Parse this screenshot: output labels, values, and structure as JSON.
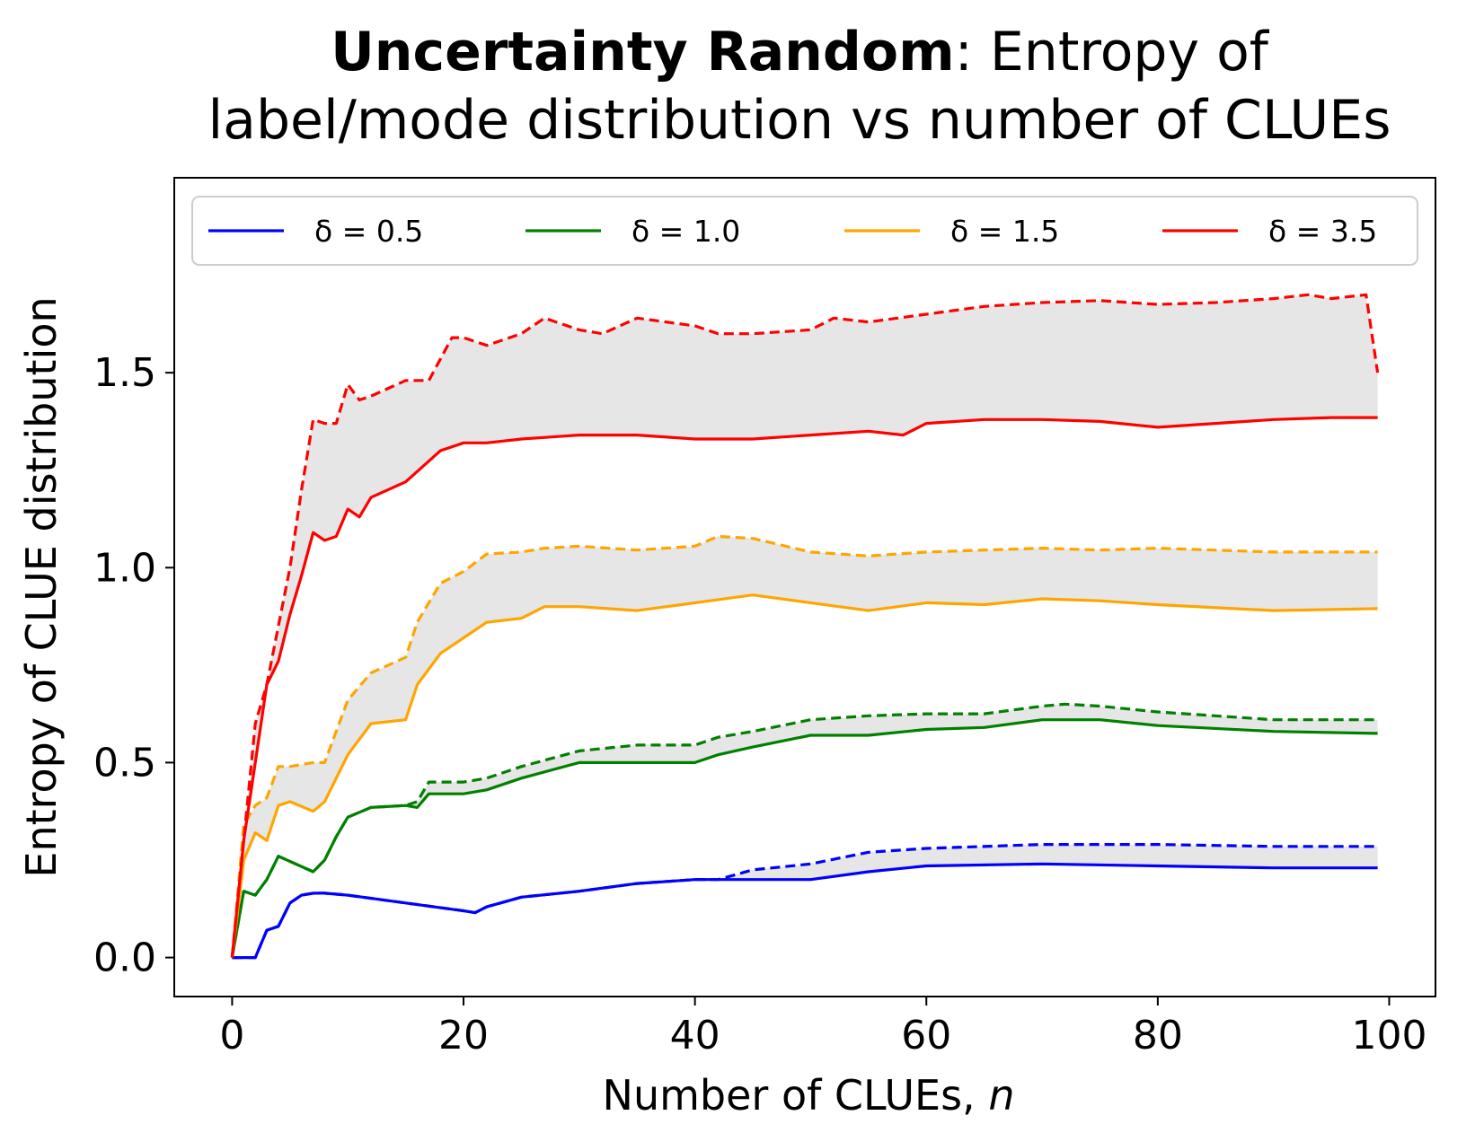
{
  "chart_data": {
    "type": "line",
    "title": {
      "bold": "Uncertainty Random",
      "rest_line1": ": Entropy of",
      "line2": "label/mode distribution vs number of CLUEs"
    },
    "xlabel": "Number of CLUEs,",
    "xlabel_var": "n",
    "ylabel": "Entropy of CLUE distribution",
    "xlim": [
      -5,
      104
    ],
    "ylim": [
      -0.1,
      2.0
    ],
    "xticks": [
      0,
      20,
      40,
      60,
      80,
      100
    ],
    "xtick_labels": [
      "0",
      "20",
      "40",
      "60",
      "80",
      "100"
    ],
    "yticks": [
      0.0,
      0.5,
      1.0,
      1.5
    ],
    "ytick_labels": [
      "0.0",
      "0.5",
      "1.0",
      "1.5"
    ],
    "grid": false,
    "legend_position": "top, single row",
    "band_color": "#e6e6e6",
    "series": [
      {
        "name": "δ = 0.5",
        "color": "#0000ff",
        "solid": [
          [
            0,
            0
          ],
          [
            1,
            0
          ],
          [
            2,
            0
          ],
          [
            3,
            0.07
          ],
          [
            4,
            0.08
          ],
          [
            5,
            0.14
          ],
          [
            6,
            0.16
          ],
          [
            7,
            0.165
          ],
          [
            8,
            0.165
          ],
          [
            10,
            0.16
          ],
          [
            15,
            0.14
          ],
          [
            20,
            0.12
          ],
          [
            21,
            0.115
          ],
          [
            22,
            0.13
          ],
          [
            25,
            0.155
          ],
          [
            30,
            0.17
          ],
          [
            35,
            0.19
          ],
          [
            40,
            0.2
          ],
          [
            45,
            0.2
          ],
          [
            50,
            0.2
          ],
          [
            55,
            0.22
          ],
          [
            60,
            0.235
          ],
          [
            70,
            0.24
          ],
          [
            80,
            0.235
          ],
          [
            90,
            0.23
          ],
          [
            99,
            0.23
          ]
        ],
        "dashed": [
          [
            0,
            0
          ],
          [
            1,
            0
          ],
          [
            2,
            0
          ],
          [
            3,
            0.07
          ],
          [
            4,
            0.08
          ],
          [
            5,
            0.14
          ],
          [
            6,
            0.16
          ],
          [
            7,
            0.165
          ],
          [
            8,
            0.165
          ],
          [
            10,
            0.16
          ],
          [
            15,
            0.14
          ],
          [
            20,
            0.12
          ],
          [
            21,
            0.115
          ],
          [
            22,
            0.13
          ],
          [
            25,
            0.155
          ],
          [
            30,
            0.17
          ],
          [
            35,
            0.19
          ],
          [
            40,
            0.2
          ],
          [
            42,
            0.2
          ],
          [
            45,
            0.225
          ],
          [
            50,
            0.24
          ],
          [
            55,
            0.27
          ],
          [
            60,
            0.28
          ],
          [
            70,
            0.29
          ],
          [
            80,
            0.29
          ],
          [
            90,
            0.285
          ],
          [
            99,
            0.285
          ]
        ]
      },
      {
        "name": "δ = 1.0",
        "color": "#008000",
        "solid": [
          [
            0,
            0
          ],
          [
            1,
            0.17
          ],
          [
            2,
            0.16
          ],
          [
            3,
            0.2
          ],
          [
            4,
            0.26
          ],
          [
            7,
            0.22
          ],
          [
            8,
            0.25
          ],
          [
            9,
            0.31
          ],
          [
            10,
            0.36
          ],
          [
            12,
            0.385
          ],
          [
            15,
            0.39
          ],
          [
            16,
            0.385
          ],
          [
            17,
            0.42
          ],
          [
            20,
            0.42
          ],
          [
            22,
            0.43
          ],
          [
            25,
            0.46
          ],
          [
            30,
            0.5
          ],
          [
            35,
            0.5
          ],
          [
            40,
            0.5
          ],
          [
            42,
            0.52
          ],
          [
            45,
            0.54
          ],
          [
            50,
            0.57
          ],
          [
            55,
            0.57
          ],
          [
            60,
            0.585
          ],
          [
            65,
            0.59
          ],
          [
            70,
            0.61
          ],
          [
            75,
            0.61
          ],
          [
            80,
            0.595
          ],
          [
            90,
            0.58
          ],
          [
            99,
            0.575
          ]
        ],
        "dashed": [
          [
            0,
            0
          ],
          [
            1,
            0.17
          ],
          [
            2,
            0.16
          ],
          [
            3,
            0.2
          ],
          [
            4,
            0.26
          ],
          [
            7,
            0.22
          ],
          [
            8,
            0.25
          ],
          [
            9,
            0.31
          ],
          [
            10,
            0.36
          ],
          [
            12,
            0.385
          ],
          [
            15,
            0.39
          ],
          [
            16,
            0.4
          ],
          [
            17,
            0.45
          ],
          [
            20,
            0.45
          ],
          [
            22,
            0.46
          ],
          [
            25,
            0.49
          ],
          [
            30,
            0.53
          ],
          [
            35,
            0.545
          ],
          [
            40,
            0.545
          ],
          [
            42,
            0.565
          ],
          [
            45,
            0.58
          ],
          [
            50,
            0.61
          ],
          [
            55,
            0.62
          ],
          [
            60,
            0.625
          ],
          [
            65,
            0.625
          ],
          [
            70,
            0.645
          ],
          [
            72,
            0.65
          ],
          [
            75,
            0.645
          ],
          [
            80,
            0.63
          ],
          [
            90,
            0.61
          ],
          [
            99,
            0.61
          ]
        ]
      },
      {
        "name": "δ = 1.5",
        "color": "#ffa500",
        "solid": [
          [
            0,
            0
          ],
          [
            1,
            0.25
          ],
          [
            2,
            0.32
          ],
          [
            3,
            0.3
          ],
          [
            4,
            0.39
          ],
          [
            5,
            0.4
          ],
          [
            7,
            0.375
          ],
          [
            8,
            0.4
          ],
          [
            10,
            0.52
          ],
          [
            12,
            0.6
          ],
          [
            15,
            0.61
          ],
          [
            16,
            0.7
          ],
          [
            18,
            0.78
          ],
          [
            20,
            0.82
          ],
          [
            22,
            0.86
          ],
          [
            25,
            0.87
          ],
          [
            27,
            0.9
          ],
          [
            30,
            0.9
          ],
          [
            35,
            0.89
          ],
          [
            40,
            0.91
          ],
          [
            45,
            0.93
          ],
          [
            50,
            0.91
          ],
          [
            55,
            0.89
          ],
          [
            60,
            0.91
          ],
          [
            65,
            0.905
          ],
          [
            70,
            0.92
          ],
          [
            75,
            0.915
          ],
          [
            80,
            0.905
          ],
          [
            90,
            0.89
          ],
          [
            99,
            0.895
          ]
        ],
        "dashed": [
          [
            0,
            0
          ],
          [
            1,
            0.34
          ],
          [
            2,
            0.39
          ],
          [
            3,
            0.41
          ],
          [
            4,
            0.49
          ],
          [
            5,
            0.49
          ],
          [
            7,
            0.5
          ],
          [
            8,
            0.5
          ],
          [
            10,
            0.66
          ],
          [
            12,
            0.73
          ],
          [
            15,
            0.77
          ],
          [
            16,
            0.86
          ],
          [
            18,
            0.96
          ],
          [
            20,
            0.99
          ],
          [
            22,
            1.035
          ],
          [
            25,
            1.04
          ],
          [
            27,
            1.05
          ],
          [
            30,
            1.055
          ],
          [
            35,
            1.045
          ],
          [
            40,
            1.055
          ],
          [
            42,
            1.08
          ],
          [
            45,
            1.075
          ],
          [
            50,
            1.04
          ],
          [
            55,
            1.03
          ],
          [
            60,
            1.04
          ],
          [
            65,
            1.045
          ],
          [
            70,
            1.05
          ],
          [
            75,
            1.045
          ],
          [
            80,
            1.05
          ],
          [
            90,
            1.04
          ],
          [
            99,
            1.04
          ]
        ]
      },
      {
        "name": "δ = 3.5",
        "color": "#ff0000",
        "solid": [
          [
            0,
            0
          ],
          [
            1,
            0.3
          ],
          [
            2,
            0.5
          ],
          [
            3,
            0.7
          ],
          [
            4,
            0.76
          ],
          [
            5,
            0.88
          ],
          [
            6,
            0.98
          ],
          [
            7,
            1.09
          ],
          [
            8,
            1.07
          ],
          [
            9,
            1.08
          ],
          [
            10,
            1.15
          ],
          [
            11,
            1.13
          ],
          [
            12,
            1.18
          ],
          [
            15,
            1.22
          ],
          [
            18,
            1.3
          ],
          [
            20,
            1.32
          ],
          [
            22,
            1.32
          ],
          [
            25,
            1.33
          ],
          [
            30,
            1.34
          ],
          [
            35,
            1.34
          ],
          [
            40,
            1.33
          ],
          [
            45,
            1.33
          ],
          [
            50,
            1.34
          ],
          [
            55,
            1.35
          ],
          [
            58,
            1.34
          ],
          [
            60,
            1.37
          ],
          [
            65,
            1.38
          ],
          [
            70,
            1.38
          ],
          [
            75,
            1.375
          ],
          [
            80,
            1.36
          ],
          [
            85,
            1.37
          ],
          [
            90,
            1.38
          ],
          [
            95,
            1.385
          ],
          [
            99,
            1.385
          ]
        ],
        "dashed": [
          [
            0,
            0
          ],
          [
            1,
            0.3
          ],
          [
            2,
            0.6
          ],
          [
            3,
            0.7
          ],
          [
            4,
            0.85
          ],
          [
            5,
            1.0
          ],
          [
            6,
            1.2
          ],
          [
            7,
            1.38
          ],
          [
            8,
            1.37
          ],
          [
            9,
            1.37
          ],
          [
            10,
            1.47
          ],
          [
            11,
            1.43
          ],
          [
            12,
            1.44
          ],
          [
            15,
            1.48
          ],
          [
            17,
            1.48
          ],
          [
            19,
            1.59
          ],
          [
            20,
            1.59
          ],
          [
            22,
            1.57
          ],
          [
            25,
            1.6
          ],
          [
            27,
            1.64
          ],
          [
            30,
            1.61
          ],
          [
            32,
            1.6
          ],
          [
            35,
            1.64
          ],
          [
            40,
            1.62
          ],
          [
            42,
            1.6
          ],
          [
            45,
            1.6
          ],
          [
            50,
            1.61
          ],
          [
            52,
            1.64
          ],
          [
            55,
            1.63
          ],
          [
            60,
            1.65
          ],
          [
            65,
            1.67
          ],
          [
            70,
            1.68
          ],
          [
            75,
            1.685
          ],
          [
            80,
            1.675
          ],
          [
            85,
            1.68
          ],
          [
            90,
            1.69
          ],
          [
            93,
            1.7
          ],
          [
            95,
            1.69
          ],
          [
            98,
            1.7
          ],
          [
            99,
            1.5
          ]
        ]
      }
    ]
  }
}
